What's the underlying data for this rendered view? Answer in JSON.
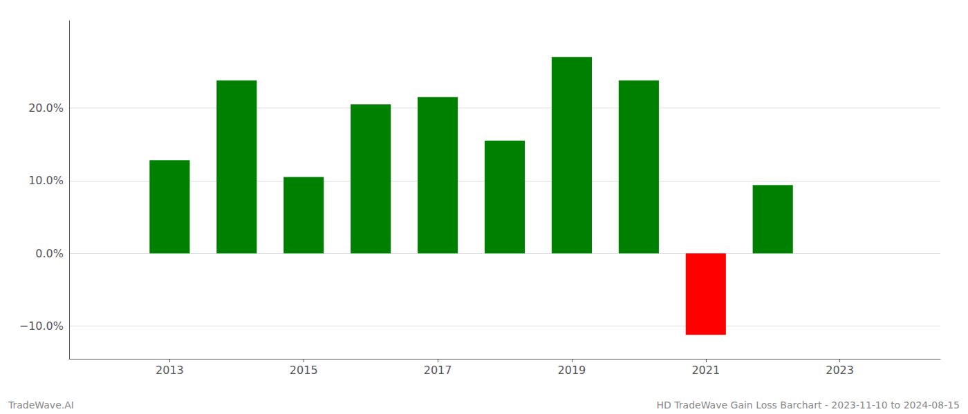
{
  "chart_data": {
    "type": "bar",
    "x": [
      2013,
      2014,
      2015,
      2016,
      2017,
      2018,
      2019,
      2020,
      2021,
      2022
    ],
    "values": [
      0.128,
      0.238,
      0.105,
      0.205,
      0.215,
      0.155,
      0.27,
      0.238,
      -0.112,
      0.094
    ],
    "colors": [
      "#008000",
      "#008000",
      "#008000",
      "#008000",
      "#008000",
      "#008000",
      "#008000",
      "#008000",
      "#ff0000",
      "#008000"
    ],
    "xlim": [
      2011.5,
      2024.5
    ],
    "xticks": [
      2013,
      2015,
      2017,
      2019,
      2021,
      2023
    ],
    "ylim": [
      -0.145,
      0.32
    ],
    "yticks": [
      {
        "value": -0.1,
        "label": "−10.0%"
      },
      {
        "value": 0.0,
        "label": "0.0%"
      },
      {
        "value": 0.1,
        "label": "10.0%"
      },
      {
        "value": 0.2,
        "label": "20.0%"
      }
    ],
    "grid": true,
    "annotations": [
      "TradeWave.AI",
      "HD TradeWave Gain Loss Barchart - 2023-11-10 to 2024-08-15"
    ]
  }
}
